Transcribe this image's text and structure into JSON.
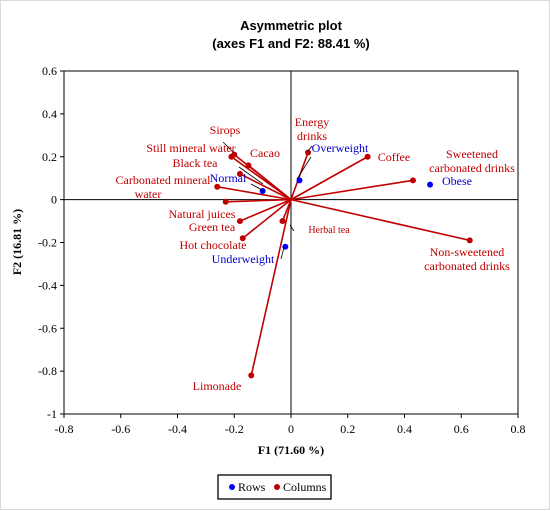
{
  "chart_data": {
    "type": "scatter",
    "title": "Asymmetric plot",
    "subtitle": "(axes F1 and F2: 88.41 %)",
    "xlabel": "F1 (71.60 %)",
    "ylabel": "F2 (16.81 %)",
    "xlim": [
      -0.8,
      0.8
    ],
    "ylim": [
      -1,
      0.6
    ],
    "x_ticks": [
      "-0.8",
      "-0.6",
      "-0.4",
      "-0.2",
      "0",
      "0.2",
      "0.4",
      "0.6",
      "0.8"
    ],
    "y_ticks": [
      "-1",
      "-0.8",
      "-0.6",
      "-0.4",
      "-0.2",
      "0",
      "0.2",
      "0.4",
      "0.6"
    ],
    "legend": [
      "Rows",
      "Columns"
    ],
    "legend_position": "bottom",
    "colors": {
      "rows": "#0000ff",
      "columns": "#c00000"
    },
    "rows": [
      {
        "name": "Normal",
        "x": -0.1,
        "y": 0.04
      },
      {
        "name": "Overweight",
        "x": 0.03,
        "y": 0.09
      },
      {
        "name": "Obese",
        "x": 0.49,
        "y": 0.07
      },
      {
        "name": "Underweight",
        "x": -0.02,
        "y": -0.22
      }
    ],
    "columns": [
      {
        "name": "Sirops",
        "x": -0.2,
        "y": 0.21
      },
      {
        "name": "Still mineral  water",
        "x": -0.21,
        "y": 0.2
      },
      {
        "name": "Cacao",
        "x": -0.15,
        "y": 0.16
      },
      {
        "name": "Black tea",
        "x": -0.18,
        "y": 0.12
      },
      {
        "name": "Carbonated mineral water",
        "x": -0.26,
        "y": 0.06
      },
      {
        "name": "Energy drinks",
        "x": 0.06,
        "y": 0.22
      },
      {
        "name": "Coffee",
        "x": 0.27,
        "y": 0.2
      },
      {
        "name": "Sweetened carbonated drinks",
        "x": 0.43,
        "y": 0.09
      },
      {
        "name": "Natural juices",
        "x": -0.23,
        "y": -0.01
      },
      {
        "name": "Green tea",
        "x": -0.18,
        "y": -0.1
      },
      {
        "name": "Hot chocolate",
        "x": -0.17,
        "y": -0.18
      },
      {
        "name": "Herbal tea",
        "x": -0.03,
        "y": -0.1
      },
      {
        "name": "Non-sweetened carbonated drinks",
        "x": 0.63,
        "y": -0.19
      },
      {
        "name": "Limonade",
        "x": -0.14,
        "y": -0.82
      }
    ]
  }
}
